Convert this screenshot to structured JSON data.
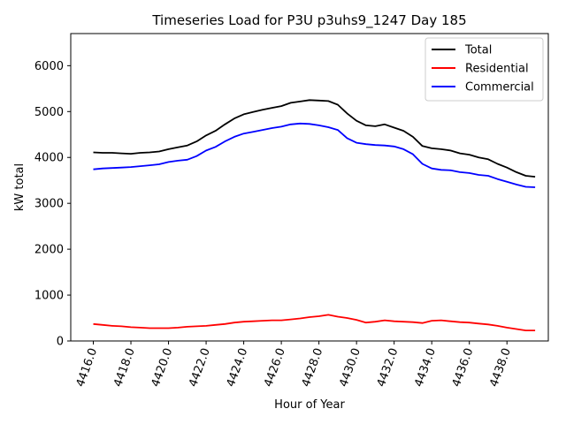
{
  "chart_data": {
    "type": "line",
    "title": "Timeseries Load for P3U p3uhs9_1247  Day 185",
    "xlabel": "Hour of Year",
    "ylabel": "kW total",
    "xlim": [
      4414.8,
      4440.2
    ],
    "ylim": [
      0,
      6700
    ],
    "xticks": [
      4416,
      4418,
      4420,
      4422,
      4424,
      4426,
      4428,
      4430,
      4432,
      4434,
      4436,
      4438
    ],
    "xtick_labels": [
      "4416.0",
      "4418.0",
      "4420.0",
      "4422.0",
      "4424.0",
      "4426.0",
      "4428.0",
      "4430.0",
      "4432.0",
      "4434.0",
      "4436.0",
      "4438.0"
    ],
    "yticks": [
      0,
      1000,
      2000,
      3000,
      4000,
      5000,
      6000
    ],
    "ytick_labels": [
      "0",
      "1000",
      "2000",
      "3000",
      "4000",
      "5000",
      "6000"
    ],
    "grid": false,
    "legend_position": "top-right",
    "x": [
      4416.0,
      4416.5,
      4417.0,
      4417.5,
      4418.0,
      4418.5,
      4419.0,
      4419.5,
      4420.0,
      4420.5,
      4421.0,
      4421.5,
      4422.0,
      4422.5,
      4423.0,
      4423.5,
      4424.0,
      4424.5,
      4425.0,
      4425.5,
      4426.0,
      4426.5,
      4427.0,
      4427.5,
      4428.0,
      4428.5,
      4429.0,
      4429.5,
      4430.0,
      4430.5,
      4431.0,
      4431.5,
      4432.0,
      4432.5,
      4433.0,
      4433.5,
      4434.0,
      4434.5,
      4435.0,
      4435.5,
      4436.0,
      4436.5,
      4437.0,
      4437.5,
      4438.0,
      4438.5,
      4439.0,
      4439.5
    ],
    "series": [
      {
        "name": "Total",
        "color": "#000000",
        "values": [
          4110,
          4100,
          4100,
          4090,
          4080,
          4100,
          4110,
          4130,
          4180,
          4220,
          4260,
          4350,
          4480,
          4580,
          4720,
          4850,
          4940,
          4990,
          5040,
          5080,
          5120,
          5190,
          5220,
          5250,
          5240,
          5230,
          5150,
          4960,
          4800,
          4700,
          4680,
          4720,
          4650,
          4580,
          4450,
          4250,
          4200,
          4180,
          4150,
          4090,
          4060,
          4000,
          3960,
          3860,
          3780,
          3680,
          3600,
          3580
        ]
      },
      {
        "name": "Residential",
        "color": "#ff0000",
        "values": [
          370,
          350,
          330,
          320,
          300,
          290,
          280,
          280,
          280,
          290,
          310,
          320,
          330,
          350,
          370,
          400,
          420,
          430,
          440,
          450,
          450,
          470,
          490,
          520,
          540,
          570,
          530,
          500,
          460,
          400,
          420,
          450,
          430,
          420,
          410,
          390,
          440,
          450,
          430,
          410,
          400,
          380,
          360,
          330,
          290,
          260,
          230,
          230
        ]
      },
      {
        "name": "Commercial",
        "color": "#0000ff",
        "values": [
          3740,
          3760,
          3770,
          3780,
          3790,
          3810,
          3830,
          3850,
          3900,
          3930,
          3950,
          4030,
          4150,
          4230,
          4350,
          4450,
          4520,
          4560,
          4600,
          4640,
          4670,
          4720,
          4740,
          4730,
          4700,
          4660,
          4600,
          4420,
          4320,
          4290,
          4270,
          4260,
          4240,
          4180,
          4070,
          3860,
          3760,
          3730,
          3720,
          3680,
          3660,
          3620,
          3600,
          3530,
          3470,
          3410,
          3360,
          3350
        ]
      }
    ]
  }
}
